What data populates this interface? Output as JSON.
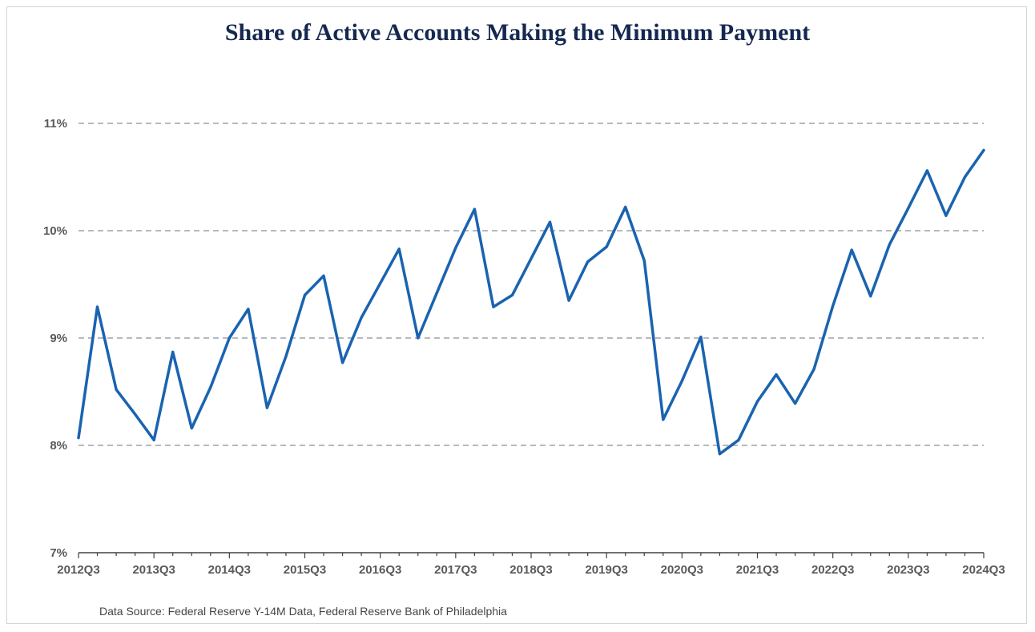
{
  "chart_data": {
    "type": "line",
    "title": "Share of Active Accounts Making the Minimum Payment",
    "xlabel": "",
    "ylabel": "",
    "ylim": [
      7,
      11
    ],
    "y_ticks": [
      7,
      8,
      9,
      10,
      11
    ],
    "y_tick_labels": [
      "7%",
      "8%",
      "9%",
      "10%",
      "11%"
    ],
    "x_tick_labels": [
      "2012Q3",
      "2013Q3",
      "2014Q3",
      "2015Q3",
      "2016Q3",
      "2017Q3",
      "2018Q3",
      "2019Q3",
      "2020Q3",
      "2021Q3",
      "2022Q3",
      "2023Q3",
      "2024Q3"
    ],
    "grid": "horizontal dashed",
    "legend": "none",
    "series": [
      {
        "color": "#1a63b0",
        "x": [
          "2012Q3",
          "2012Q4",
          "2013Q1",
          "2013Q2",
          "2013Q3",
          "2013Q4",
          "2014Q1",
          "2014Q2",
          "2014Q3",
          "2014Q4",
          "2015Q1",
          "2015Q2",
          "2015Q3",
          "2015Q4",
          "2016Q1",
          "2016Q2",
          "2016Q3",
          "2016Q4",
          "2017Q1",
          "2017Q2",
          "2017Q3",
          "2017Q4",
          "2018Q1",
          "2018Q2",
          "2018Q3",
          "2018Q4",
          "2019Q1",
          "2019Q2",
          "2019Q3",
          "2019Q4",
          "2020Q1",
          "2020Q2",
          "2020Q3",
          "2020Q4",
          "2021Q1",
          "2021Q2",
          "2021Q3",
          "2021Q4",
          "2022Q1",
          "2022Q2",
          "2022Q3",
          "2022Q4",
          "2023Q1",
          "2023Q2",
          "2023Q3",
          "2023Q4",
          "2024Q1",
          "2024Q2",
          "2024Q3"
        ],
        "values": [
          8.07,
          9.29,
          8.52,
          8.29,
          8.05,
          8.87,
          8.16,
          8.54,
          9.0,
          9.27,
          8.35,
          8.83,
          9.4,
          9.58,
          8.77,
          9.19,
          9.51,
          9.83,
          9.0,
          9.42,
          9.84,
          10.2,
          9.29,
          9.4,
          9.74,
          10.08,
          9.35,
          9.71,
          9.85,
          10.22,
          9.72,
          8.24,
          8.6,
          9.01,
          7.92,
          8.05,
          8.41,
          8.66,
          8.39,
          8.71,
          9.3,
          9.82,
          9.39,
          9.87,
          10.21,
          10.56,
          10.14,
          10.5,
          10.75
        ]
      }
    ]
  },
  "footer": {
    "source": "Data Source: Federal Reserve Y-14M Data, Federal Reserve Bank of Philadelphia"
  }
}
